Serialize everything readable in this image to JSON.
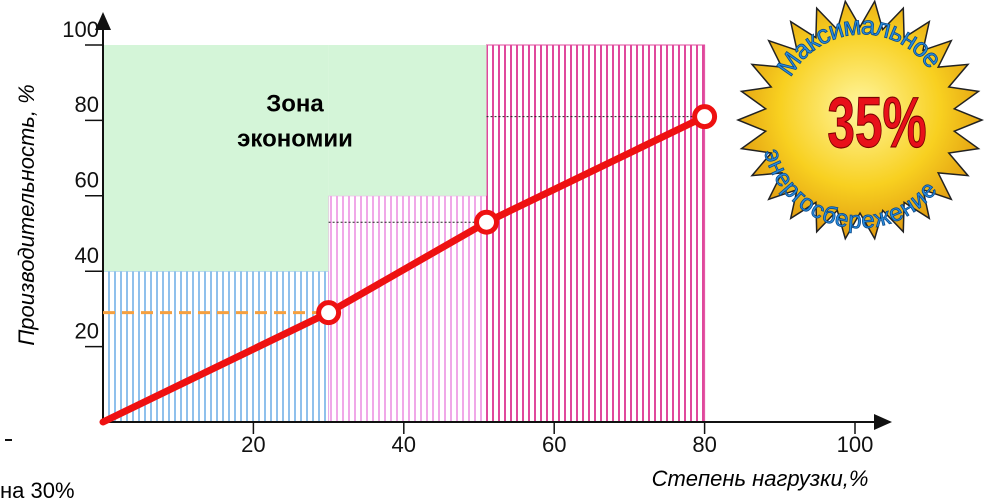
{
  "chart_data": {
    "type": "line",
    "x_label": "Степень нагрузки,%",
    "y_label": "Производительность, %",
    "xlim": [
      0,
      100
    ],
    "ylim": [
      0,
      100
    ],
    "xticks": [
      20,
      40,
      60,
      80,
      100
    ],
    "yticks": [
      20,
      40,
      60,
      80,
      100
    ],
    "x": [
      0,
      30,
      51,
      80
    ],
    "series": [
      {
        "color": "#ee1111",
        "values": [
          0,
          29,
          53,
          81
        ],
        "markers": [
          false,
          true,
          true,
          true
        ]
      }
    ],
    "zones": [
      {
        "x": [
          0,
          30
        ],
        "y": [
          0,
          40
        ],
        "color": "#8fc0ec",
        "pattern": "stripes"
      },
      {
        "x": [
          30,
          51
        ],
        "y": [
          0,
          60
        ],
        "color": "#f0a8e8",
        "pattern": "stripes"
      },
      {
        "x": [
          51,
          80
        ],
        "y": [
          0,
          100
        ],
        "color": "#e0489c",
        "pattern": "stripes"
      },
      {
        "x": [
          0,
          30
        ],
        "y": [
          40,
          100
        ],
        "color": "#d4f5d8",
        "pattern": "solid"
      },
      {
        "x": [
          30,
          51
        ],
        "y": [
          60,
          100
        ],
        "color": "#d4f5d8",
        "pattern": "solid"
      }
    ],
    "zone_label": [
      "Зона",
      "экономии"
    ],
    "badge": {
      "top": "Максимальное",
      "bottom": "энергосбережение",
      "value": "35%"
    },
    "fragment": "на 30%"
  }
}
